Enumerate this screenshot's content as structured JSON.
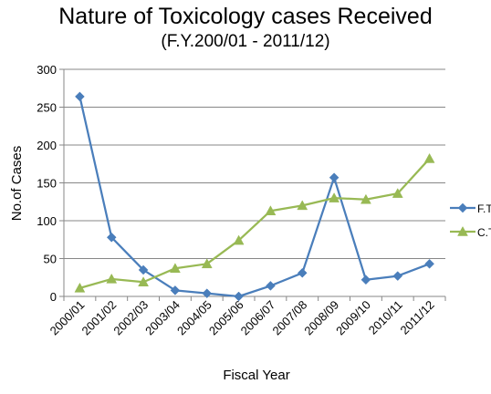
{
  "chart_data": {
    "type": "line",
    "title": "Nature of Toxicology cases Received",
    "subtitle": "(F.Y.200/01 - 2011/12)",
    "xlabel": "Fiscal Year",
    "ylabel": "No.of Cases",
    "categories": [
      "2000/01",
      "2001/02",
      "2002/03",
      "2003/04",
      "2004/05",
      "2005/06",
      "2006/07",
      "2007/08",
      "2008/09",
      "2009/10",
      "2010/11",
      "2011/12"
    ],
    "ylim": [
      0,
      300
    ],
    "yticks": [
      "0",
      "50",
      "100",
      "150",
      "200",
      "250",
      "300"
    ],
    "grid": true,
    "legend_position": "right",
    "series": [
      {
        "name": "F.Tox",
        "color": "#4a7ebb",
        "marker": "diamond",
        "values": [
          264,
          78,
          35,
          8,
          4,
          0,
          14,
          31,
          157,
          22,
          27,
          43
        ]
      },
      {
        "name": "C.Tox",
        "color": "#98b954",
        "marker": "triangle",
        "values": [
          11,
          23,
          19,
          37,
          43,
          74,
          113,
          120,
          130,
          128,
          136,
          182
        ]
      }
    ]
  }
}
